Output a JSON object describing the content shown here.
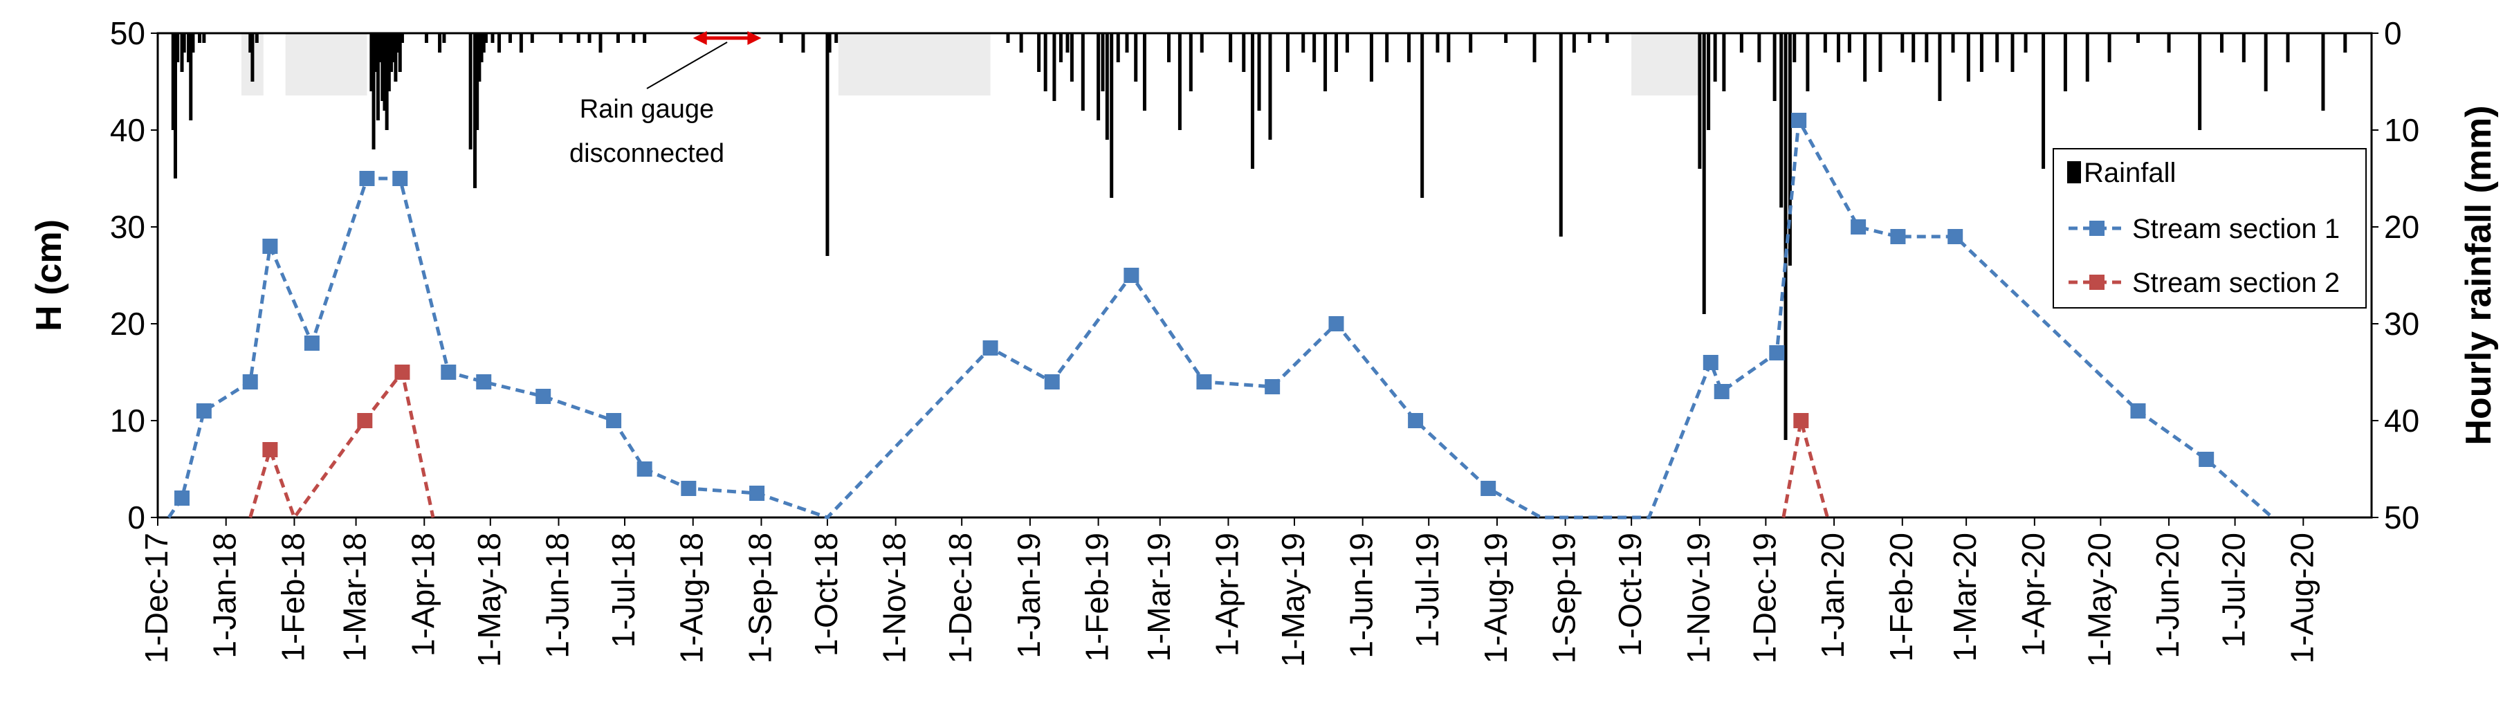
{
  "chart_data": {
    "type": "line",
    "xlabel": "",
    "ylabel": "H (cm)",
    "ylabel_right": "Hourly rainfall (mm)",
    "x_range": [
      "2017-12-01",
      "2020-09-01"
    ],
    "ylim": [
      0,
      50
    ],
    "ylim_right": [
      50,
      0
    ],
    "y_ticks": [
      "0",
      "10",
      "20",
      "30",
      "40",
      "50"
    ],
    "y_ticks_right": [
      "50",
      "40",
      "30",
      "20",
      "10",
      "0"
    ],
    "x_ticks": [
      {
        "date": "2017-12-01",
        "label": "1-Dec-17"
      },
      {
        "date": "2018-01-01",
        "label": "1-Jan-18"
      },
      {
        "date": "2018-02-01",
        "label": "1-Feb-18"
      },
      {
        "date": "2018-03-01",
        "label": "1-Mar-18"
      },
      {
        "date": "2018-04-01",
        "label": "1-Apr-18"
      },
      {
        "date": "2018-05-01",
        "label": "1-May-18"
      },
      {
        "date": "2018-06-01",
        "label": "1-Jun-18"
      },
      {
        "date": "2018-07-01",
        "label": "1-Jul-18"
      },
      {
        "date": "2018-08-01",
        "label": "1-Aug-18"
      },
      {
        "date": "2018-09-01",
        "label": "1-Sep-18"
      },
      {
        "date": "2018-10-01",
        "label": "1-Oct-18"
      },
      {
        "date": "2018-11-01",
        "label": "1-Nov-18"
      },
      {
        "date": "2018-12-01",
        "label": "1-Dec-18"
      },
      {
        "date": "2019-01-01",
        "label": "1-Jan-19"
      },
      {
        "date": "2019-02-01",
        "label": "1-Feb-19"
      },
      {
        "date": "2019-03-01",
        "label": "1-Mar-19"
      },
      {
        "date": "2019-04-01",
        "label": "1-Apr-19"
      },
      {
        "date": "2019-05-01",
        "label": "1-May-19"
      },
      {
        "date": "2019-06-01",
        "label": "1-Jun-19"
      },
      {
        "date": "2019-07-01",
        "label": "1-Jul-19"
      },
      {
        "date": "2019-08-01",
        "label": "1-Aug-19"
      },
      {
        "date": "2019-09-01",
        "label": "1-Sep-19"
      },
      {
        "date": "2019-10-01",
        "label": "1-Oct-19"
      },
      {
        "date": "2019-11-01",
        "label": "1-Nov-19"
      },
      {
        "date": "2019-12-01",
        "label": "1-Dec-19"
      },
      {
        "date": "2020-01-01",
        "label": "1-Jan-20"
      },
      {
        "date": "2020-02-01",
        "label": "1-Feb-20"
      },
      {
        "date": "2020-03-01",
        "label": "1-Mar-20"
      },
      {
        "date": "2020-04-01",
        "label": "1-Apr-20"
      },
      {
        "date": "2020-05-01",
        "label": "1-May-20"
      },
      {
        "date": "2020-06-01",
        "label": "1-Jun-20"
      },
      {
        "date": "2020-07-01",
        "label": "1-Jul-20"
      },
      {
        "date": "2020-08-01",
        "label": "1-Aug-20"
      }
    ],
    "legend": {
      "placement": "right",
      "entries": [
        {
          "label": "Rainfall",
          "kind": "bar",
          "color": "#000000"
        },
        {
          "label": "Stream section 1",
          "kind": "dashed-square",
          "color": "#4a7ebb"
        },
        {
          "label": "Stream section 2",
          "kind": "dashed-square",
          "color": "#be4b48"
        }
      ]
    },
    "annotation": {
      "lines": [
        "Rain gauge",
        "disconnected"
      ],
      "from": "2018-08-01",
      "to": "2018-09-01",
      "color": "#e00000"
    },
    "series": [
      {
        "name": "Stream section 1",
        "color": "#4a7ebb",
        "style": "dashed",
        "marker": "square",
        "points": [
          {
            "x": "2017-12-06",
            "y": 0,
            "marker": false
          },
          {
            "x": "2017-12-12",
            "y": 2
          },
          {
            "x": "2017-12-22",
            "y": 11
          },
          {
            "x": "2018-01-12",
            "y": 14
          },
          {
            "x": "2018-01-21",
            "y": 28
          },
          {
            "x": "2018-02-09",
            "y": 18
          },
          {
            "x": "2018-03-06",
            "y": 35
          },
          {
            "x": "2018-03-21",
            "y": 35
          },
          {
            "x": "2018-04-12",
            "y": 15
          },
          {
            "x": "2018-04-28",
            "y": 14
          },
          {
            "x": "2018-05-25",
            "y": 12.5
          },
          {
            "x": "2018-06-26",
            "y": 10
          },
          {
            "x": "2018-07-10",
            "y": 5
          },
          {
            "x": "2018-07-30",
            "y": 3
          },
          {
            "x": "2018-08-30",
            "y": 2.5
          },
          {
            "x": "2018-10-01",
            "y": 0,
            "marker": false
          },
          {
            "x": "2018-12-14",
            "y": 17.5
          },
          {
            "x": "2019-01-11",
            "y": 14
          },
          {
            "x": "2019-02-16",
            "y": 25
          },
          {
            "x": "2019-03-21",
            "y": 14
          },
          {
            "x": "2019-04-21",
            "y": 13.5
          },
          {
            "x": "2019-05-20",
            "y": 20
          },
          {
            "x": "2019-06-25",
            "y": 10
          },
          {
            "x": "2019-07-28",
            "y": 3
          },
          {
            "x": "2019-08-21",
            "y": 0,
            "marker": false
          },
          {
            "x": "2019-10-09",
            "y": 0,
            "marker": false
          },
          {
            "x": "2019-11-06",
            "y": 16
          },
          {
            "x": "2019-11-11",
            "y": 13
          },
          {
            "x": "2019-12-06",
            "y": 17
          },
          {
            "x": "2019-12-16",
            "y": 41
          },
          {
            "x": "2020-01-12",
            "y": 30
          },
          {
            "x": "2020-01-30",
            "y": 29
          },
          {
            "x": "2020-02-25",
            "y": 29
          },
          {
            "x": "2020-05-18",
            "y": 11
          },
          {
            "x": "2020-06-18",
            "y": 6
          },
          {
            "x": "2020-07-18",
            "y": 0,
            "marker": false
          }
        ]
      },
      {
        "name": "Stream section 2",
        "color": "#be4b48",
        "style": "dashed",
        "marker": "square",
        "points": [
          {
            "x": "2018-01-12",
            "y": 0,
            "marker": false
          },
          {
            "x": "2018-01-21",
            "y": 7
          },
          {
            "x": "2018-02-01",
            "y": 0,
            "marker": false
          },
          {
            "x": "2018-03-05",
            "y": 10
          },
          {
            "x": "2018-03-22",
            "y": 15
          },
          {
            "x": "2018-04-05",
            "y": 0,
            "marker": false
          }
        ]
      },
      {
        "name": "Stream section 2",
        "color": "#be4b48",
        "style": "dashed",
        "marker": "square",
        "points": [
          {
            "x": "2019-12-09",
            "y": 0,
            "marker": false
          },
          {
            "x": "2019-12-17",
            "y": 10
          },
          {
            "x": "2019-12-29",
            "y": 0,
            "marker": false
          }
        ]
      }
    ],
    "rainfall": {
      "name": "Rainfall",
      "color": "#000000",
      "unit": "mm",
      "dates": [
        "2017-12-08",
        "2017-12-09",
        "2017-12-10",
        "2017-12-12",
        "2017-12-13",
        "2017-12-15",
        "2017-12-16",
        "2017-12-17",
        "2017-12-20",
        "2017-12-22",
        "2018-01-12",
        "2018-01-13",
        "2018-01-15",
        "2018-03-08",
        "2018-03-09",
        "2018-03-10",
        "2018-03-11",
        "2018-03-12",
        "2018-03-13",
        "2018-03-14",
        "2018-03-15",
        "2018-03-16",
        "2018-03-17",
        "2018-03-18",
        "2018-03-19",
        "2018-03-20",
        "2018-03-21",
        "2018-03-22",
        "2018-04-02",
        "2018-04-08",
        "2018-04-10",
        "2018-04-22",
        "2018-04-24",
        "2018-04-25",
        "2018-04-26",
        "2018-04-27",
        "2018-04-28",
        "2018-04-29",
        "2018-05-02",
        "2018-05-05",
        "2018-05-10",
        "2018-05-15",
        "2018-05-20",
        "2018-06-02",
        "2018-06-10",
        "2018-06-15",
        "2018-06-20",
        "2018-06-28",
        "2018-07-05",
        "2018-07-10",
        "2018-09-10",
        "2018-09-20",
        "2018-10-01",
        "2018-10-02",
        "2018-10-05",
        "2018-12-22",
        "2018-12-28",
        "2019-01-05",
        "2019-01-08",
        "2019-01-12",
        "2019-01-15",
        "2019-01-18",
        "2019-01-20",
        "2019-01-25",
        "2019-02-01",
        "2019-02-03",
        "2019-02-05",
        "2019-02-07",
        "2019-02-10",
        "2019-02-14",
        "2019-02-18",
        "2019-02-22",
        "2019-03-05",
        "2019-03-10",
        "2019-03-15",
        "2019-03-20",
        "2019-04-02",
        "2019-04-08",
        "2019-04-12",
        "2019-04-15",
        "2019-04-20",
        "2019-04-28",
        "2019-05-05",
        "2019-05-10",
        "2019-05-15",
        "2019-05-20",
        "2019-05-25",
        "2019-06-05",
        "2019-06-12",
        "2019-06-22",
        "2019-06-28",
        "2019-07-05",
        "2019-07-10",
        "2019-07-20",
        "2019-08-05",
        "2019-08-18",
        "2019-08-30",
        "2019-09-05",
        "2019-09-12",
        "2019-09-20",
        "2019-11-01",
        "2019-11-03",
        "2019-11-05",
        "2019-11-08",
        "2019-11-12",
        "2019-11-20",
        "2019-11-28",
        "2019-12-05",
        "2019-12-08",
        "2019-12-10",
        "2019-12-12",
        "2019-12-14",
        "2019-12-20",
        "2019-12-28",
        "2020-01-03",
        "2020-01-08",
        "2020-01-15",
        "2020-01-22",
        "2020-02-01",
        "2020-02-06",
        "2020-02-12",
        "2020-02-18",
        "2020-02-24",
        "2020-03-02",
        "2020-03-08",
        "2020-03-15",
        "2020-03-22",
        "2020-03-28",
        "2020-04-05",
        "2020-04-15",
        "2020-04-25",
        "2020-05-05",
        "2020-05-18",
        "2020-06-01",
        "2020-06-15",
        "2020-06-25",
        "2020-07-05",
        "2020-07-15",
        "2020-07-25",
        "2020-08-10",
        "2020-08-20"
      ],
      "values": [
        10,
        15,
        3,
        4,
        2,
        3,
        9,
        2,
        1,
        1,
        2,
        5,
        1,
        6,
        12,
        4,
        9,
        3,
        7,
        8,
        10,
        6,
        4,
        3,
        5,
        2,
        4,
        1,
        1,
        2,
        1,
        12,
        16,
        10,
        5,
        3,
        2,
        1,
        1,
        2,
        1,
        2,
        1,
        1,
        1,
        1,
        2,
        1,
        1,
        1,
        1,
        2,
        23,
        2,
        1,
        1,
        2,
        4,
        6,
        7,
        3,
        2,
        5,
        8,
        9,
        6,
        11,
        17,
        3,
        2,
        5,
        8,
        3,
        10,
        6,
        2,
        3,
        4,
        14,
        8,
        11,
        4,
        2,
        3,
        6,
        4,
        2,
        5,
        3,
        3,
        17,
        2,
        3,
        2,
        1,
        3,
        21,
        2,
        1,
        1,
        14,
        29,
        10,
        5,
        6,
        2,
        3,
        7,
        18,
        42,
        24,
        3,
        6,
        2,
        3,
        2,
        5,
        4,
        2,
        3,
        3,
        7,
        2,
        5,
        4,
        3,
        4,
        2,
        14,
        6,
        5,
        3,
        1,
        2,
        10,
        2,
        3,
        6,
        3,
        8,
        2
      ]
    },
    "shaded_periods": [
      {
        "from": "2018-01-08",
        "to": "2018-01-18"
      },
      {
        "from": "2018-01-28",
        "to": "2018-03-06"
      },
      {
        "from": "2018-10-06",
        "to": "2018-12-14"
      },
      {
        "from": "2019-10-01",
        "to": "2019-11-01"
      }
    ],
    "grid": false
  }
}
